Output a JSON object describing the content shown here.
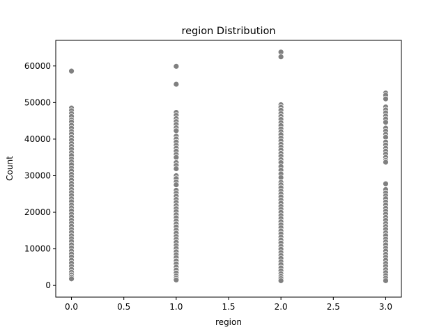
{
  "chart_data": {
    "type": "scatter",
    "title": "region Distribution",
    "xlabel": "region",
    "ylabel": "Count",
    "xlim": [
      -0.15,
      3.15
    ],
    "ylim": [
      -3200,
      67000
    ],
    "xticks": [
      {
        "value": 0.0,
        "label": "0.0"
      },
      {
        "value": 0.5,
        "label": "0.5"
      },
      {
        "value": 1.0,
        "label": "1.0"
      },
      {
        "value": 1.5,
        "label": "1.5"
      },
      {
        "value": 2.0,
        "label": "2.0"
      },
      {
        "value": 2.5,
        "label": "2.5"
      },
      {
        "value": 3.0,
        "label": "3.0"
      }
    ],
    "yticks": [
      {
        "value": 0,
        "label": "0"
      },
      {
        "value": 10000,
        "label": "10000"
      },
      {
        "value": 20000,
        "label": "20000"
      },
      {
        "value": 30000,
        "label": "30000"
      },
      {
        "value": 40000,
        "label": "40000"
      },
      {
        "value": 50000,
        "label": "50000"
      },
      {
        "value": 60000,
        "label": "60000"
      }
    ],
    "grid": false,
    "marker_color": "#808080",
    "marker_edge_color": "#ffffff",
    "series": [
      {
        "x": 0,
        "y": [
          58600,
          48500,
          47800,
          47000,
          46200,
          45300,
          44700,
          43800,
          43000,
          42100,
          41400,
          40500,
          39700,
          38800,
          38000,
          37200,
          36300,
          35500,
          34600,
          33800,
          33000,
          32100,
          31300,
          30400,
          29600,
          28800,
          27900,
          27100,
          26200,
          25400,
          24600,
          23700,
          22900,
          22000,
          21200,
          20400,
          19500,
          18700,
          17800,
          17000,
          16200,
          15300,
          14500,
          13600,
          12800,
          12000,
          11100,
          10300,
          9400,
          8600,
          7800,
          6900,
          6100,
          5200,
          4400,
          3600,
          2900,
          2300,
          1800
        ]
      },
      {
        "x": 1,
        "y": [
          59900,
          55000,
          47300,
          46500,
          45600,
          44800,
          44000,
          43100,
          42300,
          40800,
          40000,
          39200,
          38300,
          37500,
          36700,
          35800,
          35000,
          33600,
          32800,
          31900,
          30000,
          29200,
          28300,
          27500,
          26000,
          25200,
          24400,
          23500,
          22700,
          21800,
          21000,
          20200,
          19300,
          18500,
          17600,
          16800,
          16000,
          15100,
          14300,
          13400,
          12600,
          11800,
          10900,
          10100,
          9200,
          8400,
          7600,
          6700,
          5900,
          5000,
          4200,
          3400,
          2600,
          2000,
          1500
        ]
      },
      {
        "x": 2,
        "y": [
          63800,
          62500,
          49400,
          48700,
          47900,
          47000,
          46200,
          45400,
          44500,
          43700,
          42800,
          42000,
          41200,
          40300,
          39500,
          38600,
          37800,
          37000,
          36100,
          35300,
          34400,
          33600,
          32500,
          31500,
          30500,
          29500,
          28200,
          27500,
          26700,
          25800,
          25000,
          24200,
          23300,
          22500,
          21600,
          20800,
          20000,
          19100,
          18300,
          17400,
          16600,
          15800,
          14900,
          14100,
          13200,
          12400,
          11600,
          10700,
          9900,
          9000,
          8200,
          7400,
          6500,
          5700,
          4800,
          4000,
          3200,
          2500,
          1900,
          1300
        ]
      },
      {
        "x": 3,
        "y": [
          52600,
          52000,
          51000,
          48800,
          48000,
          47200,
          46300,
          45500,
          44600,
          43000,
          42200,
          41300,
          40500,
          39200,
          38400,
          37500,
          36700,
          35900,
          35000,
          34200,
          33700,
          27800,
          26200,
          25300,
          24500,
          23700,
          22800,
          22000,
          21100,
          20300,
          19500,
          18600,
          17800,
          16900,
          16100,
          15300,
          14400,
          13600,
          12700,
          11900,
          11100,
          10200,
          9400,
          8500,
          7700,
          6900,
          6000,
          5200,
          4300,
          3500,
          2700,
          2000,
          1300
        ]
      }
    ]
  }
}
